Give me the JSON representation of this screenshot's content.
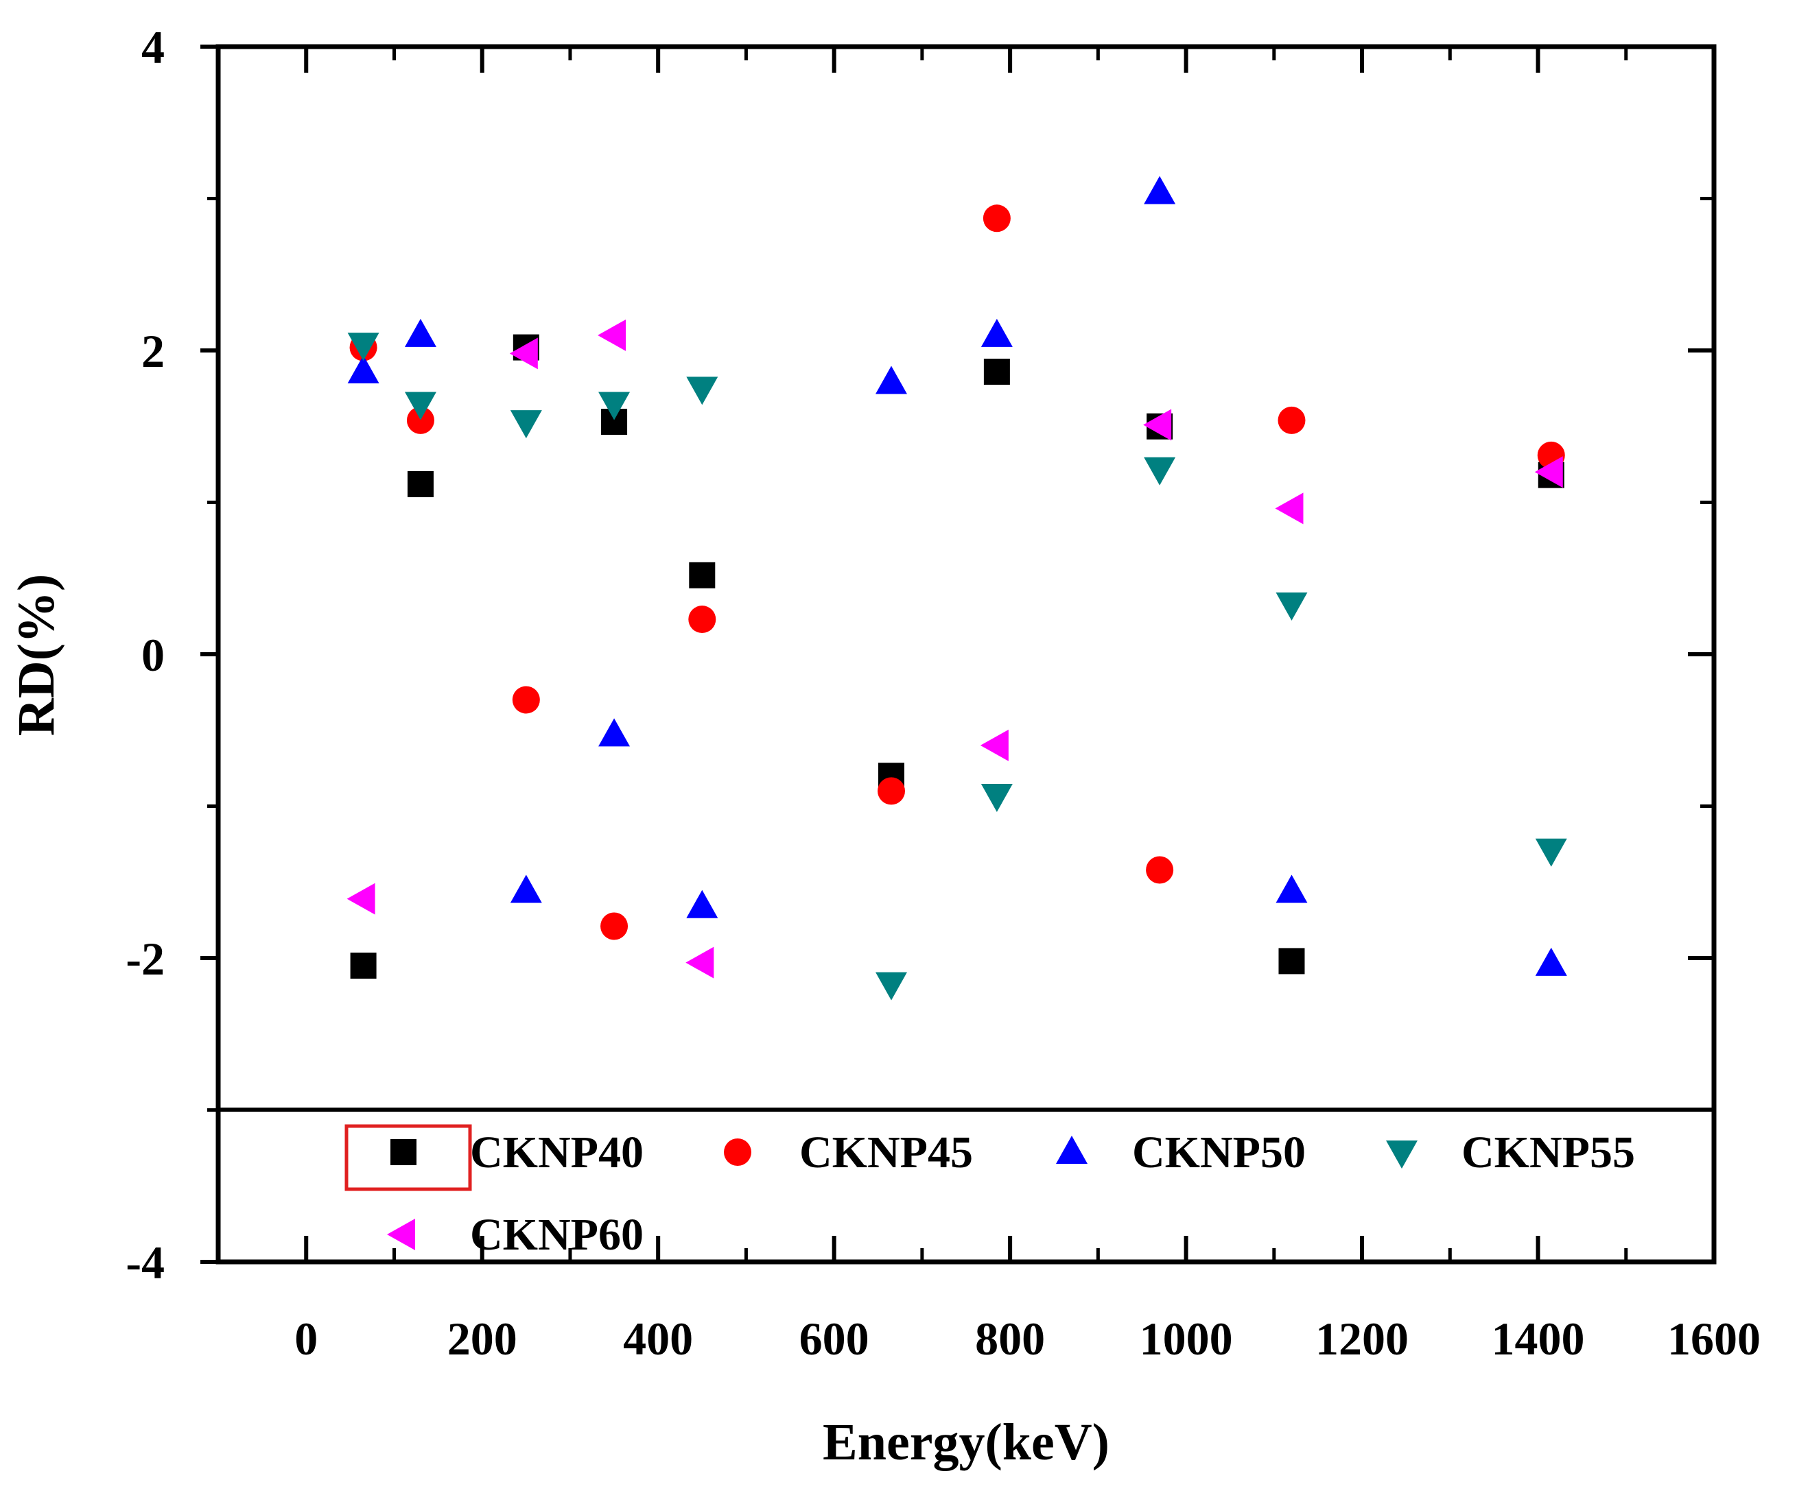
{
  "chart_data": {
    "type": "scatter",
    "title": "",
    "xlabel": "Energy(keV)",
    "ylabel": "RD(%)",
    "xlim": [
      -100,
      1600
    ],
    "ylim": [
      -4,
      4
    ],
    "x_ticks": [
      0,
      200,
      400,
      600,
      800,
      1000,
      1200,
      1400,
      1600
    ],
    "y_ticks": [
      -4,
      -2,
      0,
      2,
      4
    ],
    "x_tick_labels": [
      "0",
      "200",
      "400",
      "600",
      "800",
      "1000",
      "1200",
      "1400",
      "1600"
    ],
    "y_tick_labels": [
      "-4",
      "-2",
      "0",
      "2",
      "4"
    ],
    "legend_placement": "bottom inside plot, boxed",
    "series": [
      {
        "name": "CKNP40",
        "marker": "square",
        "color": "#000000",
        "x": [
          65,
          130,
          250,
          350,
          450,
          665,
          785,
          970,
          1120,
          1415
        ],
        "y": [
          -2.05,
          1.12,
          2.02,
          1.53,
          0.52,
          -0.8,
          1.86,
          1.5,
          -2.02,
          1.18
        ]
      },
      {
        "name": "CKNP45",
        "marker": "circle",
        "color": "#ff0000",
        "x": [
          65,
          130,
          250,
          350,
          450,
          665,
          785,
          970,
          1120,
          1415
        ],
        "y": [
          2.02,
          1.54,
          -0.3,
          -1.79,
          0.23,
          -0.9,
          2.87,
          -1.42,
          1.54,
          1.31
        ]
      },
      {
        "name": "CKNP50",
        "marker": "triangle-up",
        "color": "#0000ff",
        "x": [
          65,
          130,
          250,
          350,
          450,
          665,
          785,
          970,
          1120,
          1415
        ],
        "y": [
          1.86,
          2.1,
          -1.56,
          -0.53,
          -1.66,
          1.79,
          2.1,
          3.04,
          -1.56,
          -2.04
        ]
      },
      {
        "name": "CKNP55",
        "marker": "triangle-down",
        "color": "#008080",
        "x": [
          65,
          130,
          250,
          350,
          450,
          665,
          785,
          970,
          1120,
          1415
        ],
        "y": [
          2.04,
          1.65,
          1.53,
          1.65,
          1.75,
          -2.17,
          -0.93,
          1.22,
          0.33,
          -1.29
        ]
      },
      {
        "name": "CKNP60",
        "marker": "triangle-left",
        "color": "#ff00ff",
        "x": [
          65,
          250,
          350,
          450,
          785,
          970,
          1120,
          1415
        ],
        "y": [
          -1.61,
          1.98,
          2.1,
          -2.03,
          -0.6,
          1.51,
          0.96,
          1.2
        ]
      }
    ]
  }
}
